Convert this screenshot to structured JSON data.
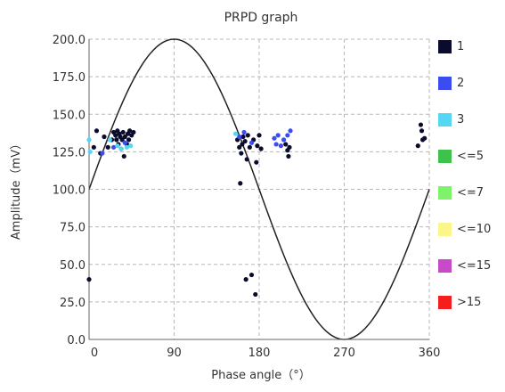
{
  "chart_data": {
    "type": "scatter",
    "title": "PRPD graph",
    "xlabel": "Phase angle（°）",
    "ylabel": "Amplitude（mV）",
    "xlim": [
      0,
      360
    ],
    "ylim": [
      0,
      200
    ],
    "x_ticks": [
      "0",
      "90",
      "180",
      "270",
      "360"
    ],
    "y_ticks": [
      "0.0",
      "25.0",
      "50.0",
      "75.0",
      "100.0",
      "125.0",
      "150.0",
      "175.0",
      "200.0"
    ],
    "grid": true,
    "legend_position": "right",
    "reference_curve": {
      "shape": "sine",
      "offset": 100,
      "amplitude": 100
    },
    "series": [
      {
        "name": "1",
        "color": "#0b0b2e",
        "points": [
          [
            0,
            40
          ],
          [
            5,
            128
          ],
          [
            8,
            139
          ],
          [
            12,
            124
          ],
          [
            16,
            135
          ],
          [
            20,
            128
          ],
          [
            24,
            133
          ],
          [
            26,
            138
          ],
          [
            28,
            136
          ],
          [
            29,
            133
          ],
          [
            30,
            139
          ],
          [
            31,
            130
          ],
          [
            32,
            137
          ],
          [
            33,
            135
          ],
          [
            34,
            127
          ],
          [
            35,
            133
          ],
          [
            36,
            138
          ],
          [
            37,
            122
          ],
          [
            38,
            135
          ],
          [
            40,
            130
          ],
          [
            41,
            137
          ],
          [
            42,
            133
          ],
          [
            43,
            139
          ],
          [
            45,
            136
          ],
          [
            47,
            138
          ],
          [
            157,
            133
          ],
          [
            159,
            128
          ],
          [
            160,
            104
          ],
          [
            161,
            124
          ],
          [
            162,
            130
          ],
          [
            163,
            135
          ],
          [
            165,
            132
          ],
          [
            166,
            40
          ],
          [
            167,
            120
          ],
          [
            168,
            136
          ],
          [
            170,
            128
          ],
          [
            172,
            43
          ],
          [
            174,
            133
          ],
          [
            176,
            30
          ],
          [
            177,
            118
          ],
          [
            178,
            129
          ],
          [
            180,
            136
          ],
          [
            182,
            127
          ],
          [
            208,
            130
          ],
          [
            210,
            126
          ],
          [
            211,
            122
          ],
          [
            212,
            128
          ],
          [
            348,
            129
          ],
          [
            351,
            143
          ],
          [
            352,
            139
          ],
          [
            353,
            133
          ],
          [
            355,
            134
          ]
        ]
      },
      {
        "name": "2",
        "color": "#3a4df2",
        "points": [
          [
            14,
            124
          ],
          [
            26,
            128
          ],
          [
            38,
            131
          ],
          [
            159,
            135
          ],
          [
            164,
            138
          ],
          [
            172,
            131
          ],
          [
            196,
            134
          ],
          [
            198,
            130
          ],
          [
            200,
            136
          ],
          [
            203,
            129
          ],
          [
            206,
            133
          ],
          [
            210,
            136
          ],
          [
            213,
            139
          ]
        ]
      },
      {
        "name": "3",
        "color": "#55d7f3",
        "points": [
          [
            0,
            133
          ],
          [
            1,
            125
          ],
          [
            22,
            133
          ],
          [
            30,
            129
          ],
          [
            34,
            127
          ],
          [
            40,
            128
          ],
          [
            44,
            129
          ],
          [
            155,
            137
          ]
        ]
      },
      {
        "name": "<=5",
        "color": "#3ec24a",
        "points": []
      },
      {
        "name": "<=7",
        "color": "#7ef26a",
        "points": []
      },
      {
        "name": "<=10",
        "color": "#fbf58a",
        "points": []
      },
      {
        "name": "<=15",
        "color": "#c94ac9",
        "points": []
      },
      {
        "name": ">15",
        "color": "#f51d1d",
        "points": []
      }
    ]
  }
}
